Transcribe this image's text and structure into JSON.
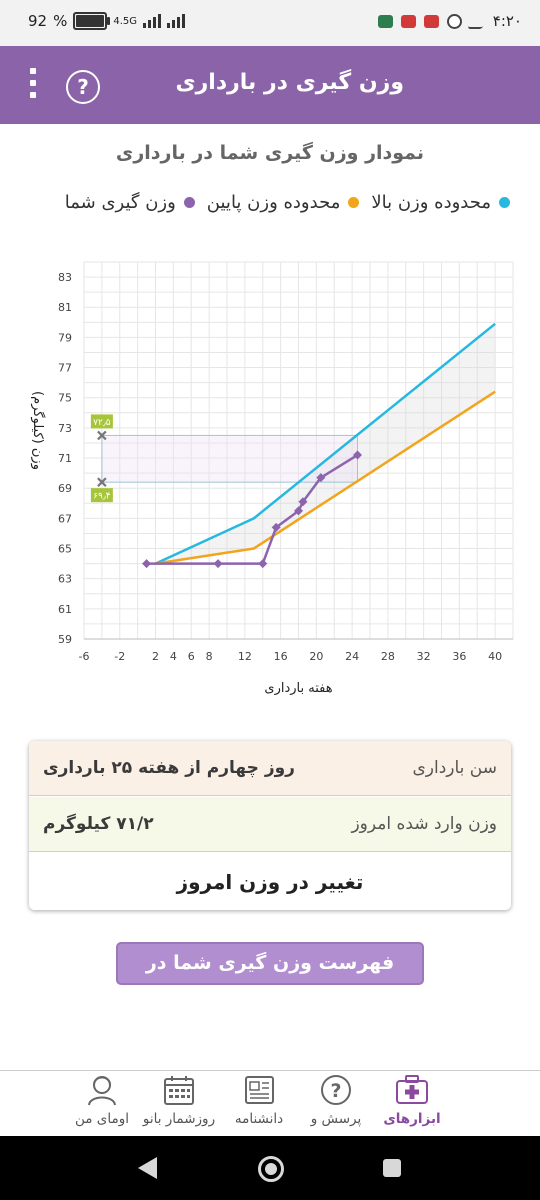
{
  "status_bar": {
    "battery": "92",
    "battery_level": 0.92,
    "network": "4.5G",
    "time": "۴:۲۰"
  },
  "app_bar": {
    "title": "وزن گیری در بارداری",
    "help_symbol": "?",
    "icons": [
      "menu-dots-icon",
      "help-icon"
    ]
  },
  "chart_header": {
    "title": "نمودار وزن گیری شما در بارداری"
  },
  "legend": [
    {
      "label": "محدوده وزن بالا",
      "color": "#27b8e0"
    },
    {
      "label": "محدوده وزن پایین",
      "color": "#f2a41c"
    },
    {
      "label": "وزن گیری شما",
      "color": "#8c64ad"
    }
  ],
  "chart_data": {
    "type": "line",
    "xlabel": "هفته بارداری",
    "ylabel": "وزن (کیلوگرم)",
    "xlim": [
      -6,
      42
    ],
    "ylim": [
      59,
      84
    ],
    "x_ticks": [
      -6,
      -2,
      2,
      4,
      6,
      8,
      12,
      16,
      20,
      24,
      28,
      32,
      36,
      40
    ],
    "y_ticks": [
      59,
      61,
      63,
      65,
      67,
      69,
      71,
      73,
      75,
      77,
      79,
      81,
      83
    ],
    "grid": true,
    "series": [
      {
        "name": "محدوده وزن بالا",
        "color": "#27b8e0",
        "points": [
          [
            2,
            64
          ],
          [
            13,
            67
          ],
          [
            40,
            79.9
          ]
        ]
      },
      {
        "name": "محدوده وزن پایین",
        "color": "#f2a41c",
        "points": [
          [
            2,
            64
          ],
          [
            13,
            65
          ],
          [
            40,
            75.4
          ]
        ]
      },
      {
        "name": "وزن گیری شما",
        "color": "#8c64ad",
        "points": [
          [
            1,
            64
          ],
          [
            9,
            64
          ],
          [
            14,
            64
          ],
          [
            15.5,
            66.4
          ],
          [
            18,
            67.5
          ],
          [
            18.5,
            68.1
          ],
          [
            20.5,
            69.7
          ],
          [
            24.6,
            71.2
          ]
        ]
      }
    ],
    "reference_markers": [
      {
        "label": "۷۲٫۵",
        "value": 72.5
      },
      {
        "label": "۶۹٫۴",
        "value": 69.4
      }
    ]
  },
  "info_card": {
    "age_label": "سن بارداری",
    "age_value": "روز چهارم از هفته ۲۵ بارداری",
    "weight_label": "وزن وارد شده امروز",
    "weight_value": "۷۱/۲ کیلوگرم",
    "change_button": "تغییر در وزن امروز"
  },
  "list_button": "فهرست وزن گیری شما در بارداری",
  "bottom_nav": [
    {
      "label": "ابزارهای",
      "icon": "medical-kit-icon",
      "active": true
    },
    {
      "label": "پرسش و",
      "icon": "question-circle-icon",
      "active": false
    },
    {
      "label": "دانشنامه",
      "icon": "newspaper-icon",
      "active": false
    },
    {
      "label": "روزشمار بانو",
      "icon": "calendar-icon",
      "active": false
    },
    {
      "label": "اومای من",
      "icon": "user-avatar-icon",
      "active": false
    }
  ]
}
